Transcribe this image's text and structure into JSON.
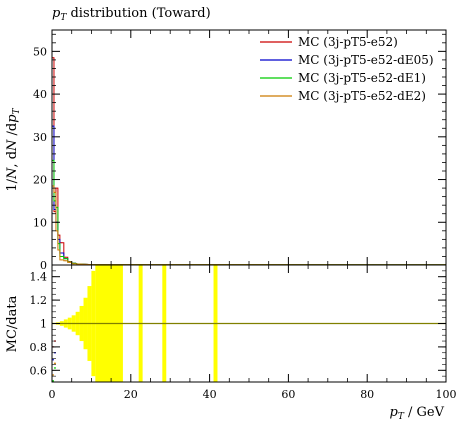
{
  "chart_data": [
    {
      "type": "line",
      "title": "pT distribution (Toward)",
      "title_parts": {
        "main": "p",
        "sub": "T",
        "rest": " distribution (Toward)"
      },
      "ylabel": "1/N dN/dpT",
      "ylabel_parts": {
        "prefix": "1/",
        "n1": "N",
        "d": ", d",
        "n2": "N",
        "slash": " /d",
        "p": "p",
        "sub": "T"
      },
      "xlim": [
        0,
        100
      ],
      "ylim": [
        0,
        55
      ],
      "y_ticks": [
        "0",
        "10",
        "20",
        "30",
        "40",
        "50"
      ],
      "y_tick_values": [
        0,
        10,
        20,
        30,
        40,
        50
      ],
      "legend_position": "top-right",
      "series": [
        {
          "name": "MC (3j-pT5-e52)",
          "color": "#cc0000",
          "x": [
            0.25,
            0.75,
            1.25,
            1.75,
            2.5,
            3.5,
            4.5,
            5.5,
            7
          ],
          "y": [
            48.5,
            12.5,
            18.0,
            7.0,
            5.2,
            1.8,
            0.8,
            0.4,
            0.2
          ]
        },
        {
          "name": "MC (3j-pT5-e52-dE05)",
          "color": "#0000cc",
          "x": [
            0.25,
            0.75,
            1.25,
            1.75,
            2.5,
            3.5,
            4.5,
            5.5,
            7
          ],
          "y": [
            32.5,
            13.0,
            10.0,
            6.0,
            2.8,
            1.5,
            0.7,
            0.4,
            0.2
          ]
        },
        {
          "name": "MC (3j-pT5-e52-dE1)",
          "color": "#00cc00",
          "x": [
            0.25,
            0.75,
            1.25,
            1.75,
            2.5,
            3.5,
            4.5,
            5.5,
            7
          ],
          "y": [
            24.5,
            15.0,
            13.5,
            5.0,
            2.0,
            1.5,
            0.7,
            0.4,
            0.2
          ]
        },
        {
          "name": "MC (3j-pT5-e52-dE2)",
          "color": "#cc7a00",
          "x": [
            0.25,
            0.75,
            1.25,
            1.75,
            2.5,
            3.5,
            4.5,
            5.5,
            7
          ],
          "y": [
            18.5,
            17.0,
            8.0,
            3.5,
            1.2,
            1.0,
            0.6,
            0.3,
            0.2
          ]
        }
      ]
    },
    {
      "type": "line",
      "ylabel": "MC/data",
      "xlabel": "pT / GeV",
      "xlabel_parts": {
        "p": "p",
        "sub": "T",
        "rest": " / GeV"
      },
      "xlim": [
        0,
        100
      ],
      "ylim": [
        0.5,
        1.5
      ],
      "y_ticks": [
        "0.6",
        "0.8",
        "1",
        "1.2",
        "1.4"
      ],
      "y_tick_values": [
        0.6,
        0.8,
        1.0,
        1.2,
        1.4
      ],
      "x_ticks": [
        "0",
        "20",
        "40",
        "60",
        "80",
        "100"
      ],
      "x_tick_values": [
        0,
        20,
        40,
        60,
        80,
        100
      ],
      "uncertainty_band": {
        "color": "#ffff00",
        "bins": [
          {
            "x0": 0,
            "x1": 1,
            "err": 0.005
          },
          {
            "x0": 1,
            "x1": 2,
            "err": 0.01
          },
          {
            "x0": 2,
            "x1": 3,
            "err": 0.02
          },
          {
            "x0": 3,
            "x1": 4,
            "err": 0.035
          },
          {
            "x0": 4,
            "x1": 5,
            "err": 0.05
          },
          {
            "x0": 5,
            "x1": 6,
            "err": 0.07
          },
          {
            "x0": 6,
            "x1": 7,
            "err": 0.1
          },
          {
            "x0": 7,
            "x1": 8,
            "err": 0.15
          },
          {
            "x0": 8,
            "x1": 9,
            "err": 0.22
          },
          {
            "x0": 9,
            "x1": 10,
            "err": 0.32
          },
          {
            "x0": 10,
            "x1": 11,
            "err": 0.45
          },
          {
            "x0": 11,
            "x1": 18,
            "err": 0.7
          },
          {
            "x0": 22,
            "x1": 23,
            "err": 0.7
          },
          {
            "x0": 28,
            "x1": 29,
            "err": 0.7
          },
          {
            "x0": 41,
            "x1": 42,
            "err": 0.7
          }
        ]
      },
      "series": [
        {
          "name": "MC (3j-pT5-e52)",
          "color": "#cc0000",
          "y_const": 1.0,
          "low_x": [
            0.25,
            0.75
          ],
          "low_y": [
            0.8,
            0.85
          ]
        },
        {
          "name": "MC (3j-pT5-e52-dE05)",
          "color": "#0000cc",
          "y_const": 1.0,
          "low_x": [
            0.25,
            0.75
          ],
          "low_y": [
            0.69,
            0.75
          ]
        },
        {
          "name": "MC (3j-pT5-e52-dE1)",
          "color": "#00cc00",
          "y_const": 1.0,
          "low_x": [
            0.25,
            0.75
          ],
          "low_y": [
            0.51,
            0.62
          ]
        },
        {
          "name": "MC (3j-pT5-e52-dE2)",
          "color": "#cc7a00",
          "y_const": 1.0,
          "low_x": [
            0.25,
            0.75
          ],
          "low_y": [
            0.56,
            0.66
          ]
        }
      ]
    }
  ]
}
